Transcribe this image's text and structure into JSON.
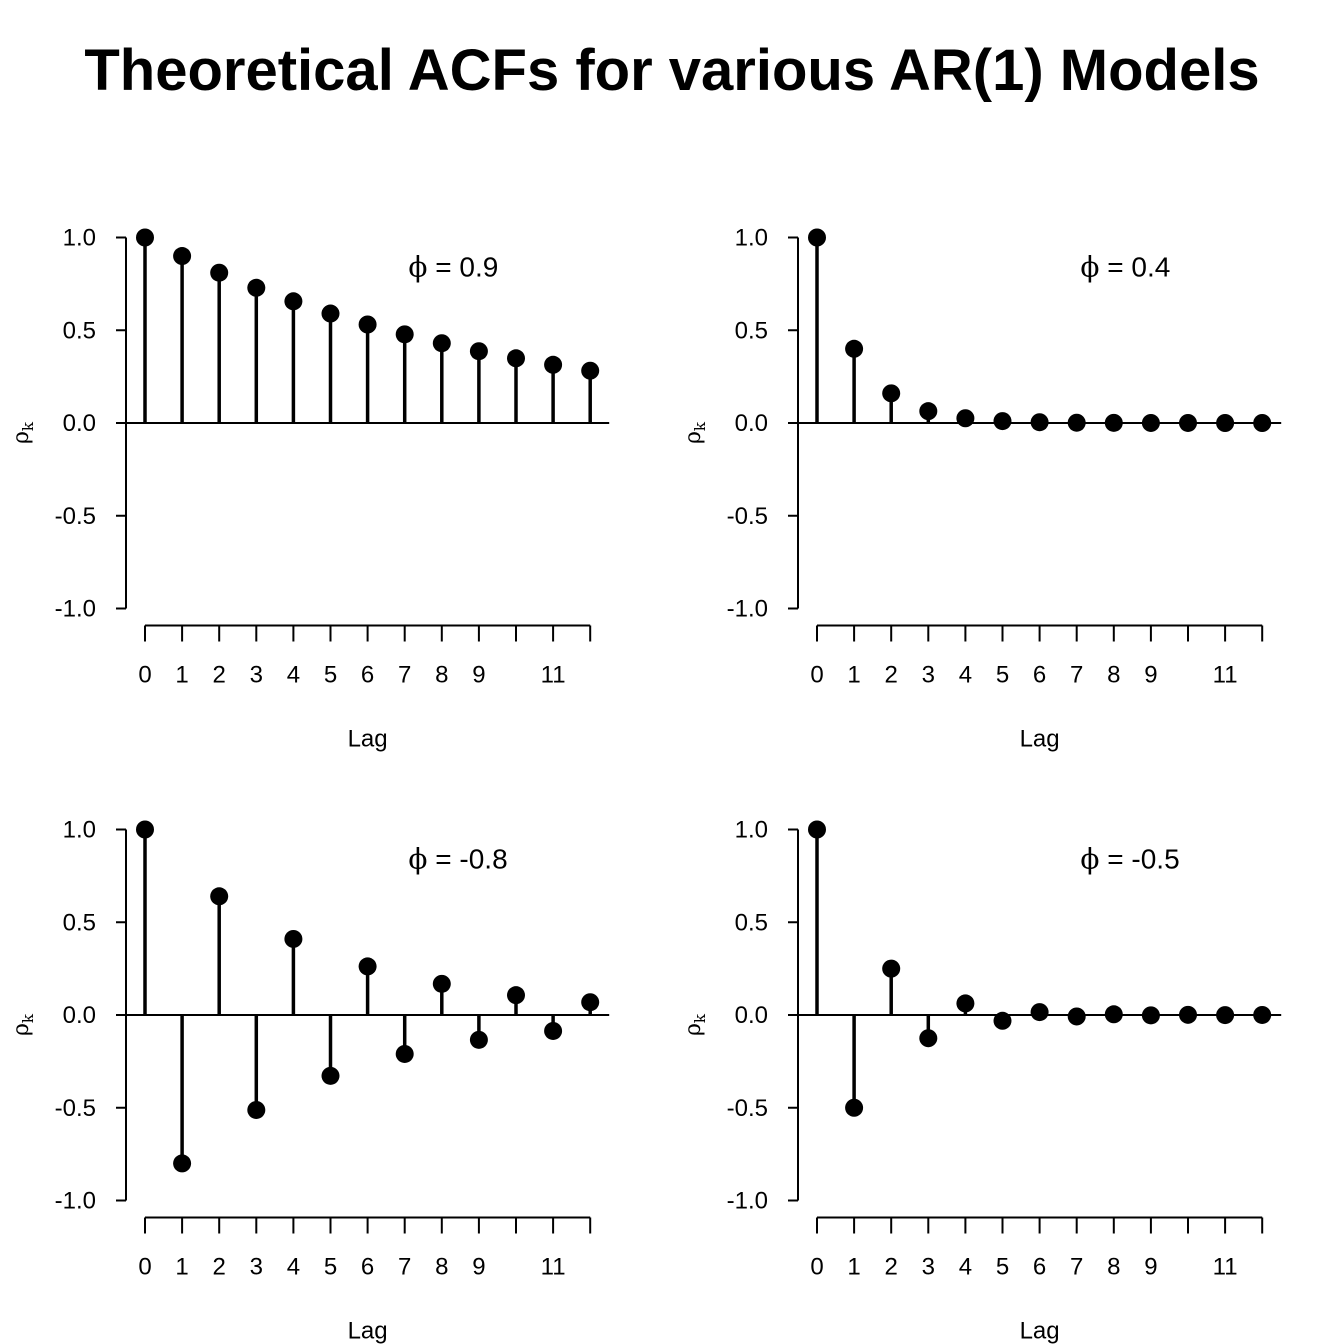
{
  "title": "Theoretical ACFs for various AR(1) Models",
  "chart_data": [
    {
      "type": "stem",
      "annotation_symbol": "ϕ",
      "annotation_value": "0.9",
      "xlabel": "Lag",
      "ylabel": "ρ",
      "ylabel_subscript": "k",
      "ylim": [
        -1.0,
        1.0
      ],
      "y_ticks": [
        "1.0",
        "0.5",
        "0.0",
        "-0.5",
        "-1.0"
      ],
      "x_ticks": [
        0,
        1,
        2,
        3,
        4,
        5,
        6,
        7,
        8,
        9,
        10,
        11,
        12
      ],
      "x_tick_labels": [
        "0",
        "1",
        "2",
        "3",
        "4",
        "5",
        "6",
        "7",
        "8",
        "9",
        "",
        "11",
        ""
      ],
      "x": [
        0,
        1,
        2,
        3,
        4,
        5,
        6,
        7,
        8,
        9,
        10,
        11,
        12
      ],
      "values": [
        1.0,
        0.9,
        0.81,
        0.729,
        0.656,
        0.59,
        0.531,
        0.478,
        0.43,
        0.387,
        0.349,
        0.314,
        0.282
      ]
    },
    {
      "type": "stem",
      "annotation_symbol": "ϕ",
      "annotation_value": "0.4",
      "xlabel": "Lag",
      "ylabel": "ρ",
      "ylabel_subscript": "k",
      "ylim": [
        -1.0,
        1.0
      ],
      "y_ticks": [
        "1.0",
        "0.5",
        "0.0",
        "-0.5",
        "-1.0"
      ],
      "x_ticks": [
        0,
        1,
        2,
        3,
        4,
        5,
        6,
        7,
        8,
        9,
        10,
        11,
        12
      ],
      "x_tick_labels": [
        "0",
        "1",
        "2",
        "3",
        "4",
        "5",
        "6",
        "7",
        "8",
        "9",
        "",
        "11",
        ""
      ],
      "x": [
        0,
        1,
        2,
        3,
        4,
        5,
        6,
        7,
        8,
        9,
        10,
        11,
        12
      ],
      "values": [
        1.0,
        0.4,
        0.16,
        0.064,
        0.0256,
        0.0102,
        0.0041,
        0.0016,
        0.0007,
        0.0003,
        0.0001,
        0.0,
        0.0
      ]
    },
    {
      "type": "stem",
      "annotation_symbol": "ϕ",
      "annotation_value": "-0.8",
      "xlabel": "Lag",
      "ylabel": "ρ",
      "ylabel_subscript": "k",
      "ylim": [
        -1.0,
        1.0
      ],
      "y_ticks": [
        "1.0",
        "0.5",
        "0.0",
        "-0.5",
        "-1.0"
      ],
      "x_ticks": [
        0,
        1,
        2,
        3,
        4,
        5,
        6,
        7,
        8,
        9,
        10,
        11,
        12
      ],
      "x_tick_labels": [
        "0",
        "1",
        "2",
        "3",
        "4",
        "5",
        "6",
        "7",
        "8",
        "9",
        "",
        "11",
        ""
      ],
      "x": [
        0,
        1,
        2,
        3,
        4,
        5,
        6,
        7,
        8,
        9,
        10,
        11,
        12
      ],
      "values": [
        1.0,
        -0.8,
        0.64,
        -0.512,
        0.41,
        -0.328,
        0.262,
        -0.21,
        0.168,
        -0.134,
        0.107,
        -0.086,
        0.069
      ]
    },
    {
      "type": "stem",
      "annotation_symbol": "ϕ",
      "annotation_value": "-0.5",
      "xlabel": "Lag",
      "ylabel": "ρ",
      "ylabel_subscript": "k",
      "ylim": [
        -1.0,
        1.0
      ],
      "y_ticks": [
        "1.0",
        "0.5",
        "0.0",
        "-0.5",
        "-1.0"
      ],
      "x_ticks": [
        0,
        1,
        2,
        3,
        4,
        5,
        6,
        7,
        8,
        9,
        10,
        11,
        12
      ],
      "x_tick_labels": [
        "0",
        "1",
        "2",
        "3",
        "4",
        "5",
        "6",
        "7",
        "8",
        "9",
        "",
        "11",
        ""
      ],
      "x": [
        0,
        1,
        2,
        3,
        4,
        5,
        6,
        7,
        8,
        9,
        10,
        11,
        12
      ],
      "values": [
        1.0,
        -0.5,
        0.25,
        -0.125,
        0.0625,
        -0.0313,
        0.0156,
        -0.0078,
        0.0039,
        -0.002,
        0.001,
        -0.0005,
        0.0002
      ]
    }
  ]
}
